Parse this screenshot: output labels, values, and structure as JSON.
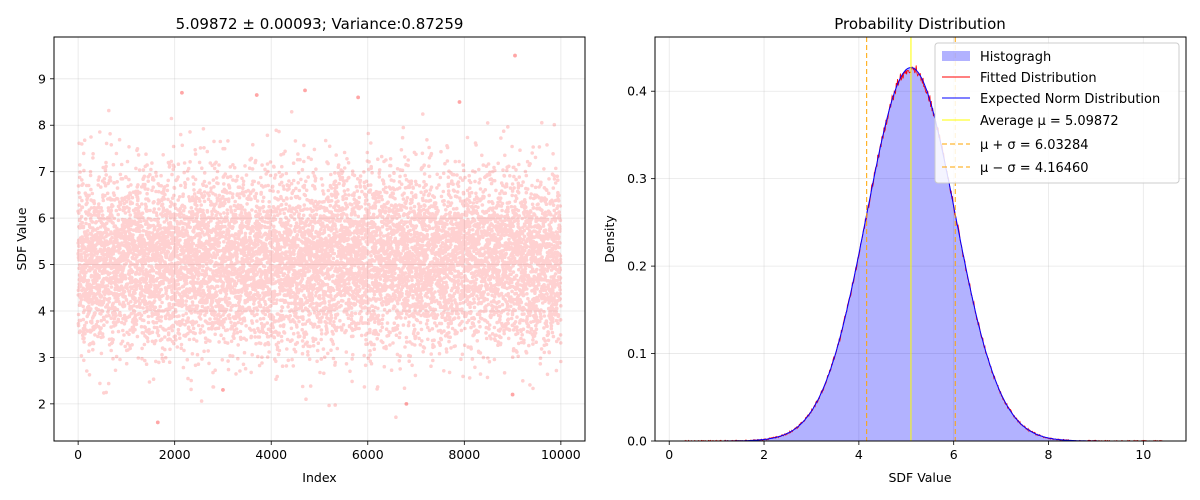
{
  "chart_data": [
    {
      "type": "scatter",
      "title": "5.09872 ± 0.00093; Variance:0.87259",
      "xlabel": "Index",
      "ylabel": "SDF Value",
      "xlim": [
        -500,
        10500
      ],
      "ylim": [
        1.2,
        9.9
      ],
      "xticks": [
        0,
        2000,
        4000,
        6000,
        8000,
        10000
      ],
      "yticks": [
        2,
        3,
        4,
        5,
        6,
        7,
        8,
        9
      ],
      "grid": true,
      "marker_color": "#ff0000",
      "marker_alpha": 0.18,
      "n_points": 10000,
      "distribution": {
        "mean": 5.09872,
        "std": 0.93
      },
      "notable_points": [
        {
          "x": 9050,
          "y": 9.5
        },
        {
          "x": 3700,
          "y": 8.65
        },
        {
          "x": 4700,
          "y": 8.75
        },
        {
          "x": 2150,
          "y": 8.7
        },
        {
          "x": 5800,
          "y": 8.6
        },
        {
          "x": 7900,
          "y": 8.5
        },
        {
          "x": 6800,
          "y": 2.0
        },
        {
          "x": 1650,
          "y": 1.6
        },
        {
          "x": 9000,
          "y": 2.2
        },
        {
          "x": 3000,
          "y": 2.3
        }
      ]
    },
    {
      "type": "histogram",
      "title": "Probability Distribution",
      "xlabel": "SDF Value",
      "ylabel": "Density",
      "xlim": [
        -0.3,
        10.9
      ],
      "ylim": [
        0,
        0.462
      ],
      "xticks": [
        0,
        2,
        4,
        6,
        8,
        10
      ],
      "yticks": [
        0.0,
        0.1,
        0.2,
        0.3,
        0.4
      ],
      "grid": true,
      "legend": "top-right",
      "mean": 5.09872,
      "mean_plus_sigma": 6.03284,
      "mean_minus_sigma": 4.1646,
      "range": [
        0.25,
        10.4
      ],
      "series": [
        {
          "name": "Histogragh",
          "kind": "bar",
          "color": "#0000ff",
          "alpha": 0.3
        },
        {
          "name": "Fitted Distribution",
          "kind": "line",
          "color": "#ff0000"
        },
        {
          "name": "Expected Norm Distribution",
          "kind": "line",
          "color": "#0000ff"
        },
        {
          "name": "Average μ = 5.09872",
          "kind": "vline",
          "x": 5.09872,
          "color": "#ffff00"
        },
        {
          "name": "μ + σ = 6.03284",
          "kind": "vline",
          "x": 6.03284,
          "color": "#ffa500",
          "dashed": true
        },
        {
          "name": "μ − σ = 4.16460",
          "kind": "vline",
          "x": 4.1646,
          "color": "#ffa500",
          "dashed": true
        }
      ]
    }
  ]
}
